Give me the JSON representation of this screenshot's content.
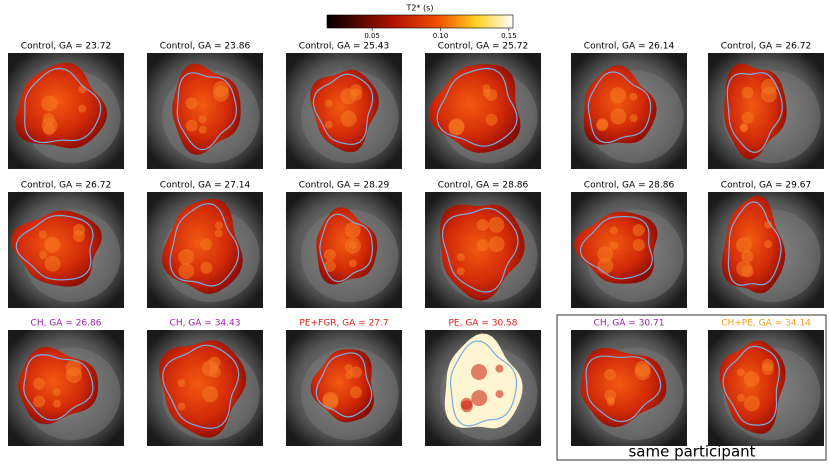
{
  "colorbar": {
    "label": "T2* (s)",
    "range": [
      0.017,
      0.153
    ],
    "ticks": [
      0.05,
      {
        "value": 0.1,
        "label": "0.10"
      },
      0.15
    ]
  },
  "panels": [
    {
      "title": "Control, GA = 23.72",
      "color": "#000000"
    },
    {
      "title": "Control, GA = 23.86",
      "color": "#000000"
    },
    {
      "title": "Control, GA = 25.43",
      "color": "#000000"
    },
    {
      "title": "Control, GA = 25.72",
      "color": "#000000"
    },
    {
      "title": "Control, GA = 26.14",
      "color": "#000000"
    },
    {
      "title": "Control, GA = 26.72",
      "color": "#000000"
    },
    {
      "title": "Control, GA = 26.72",
      "color": "#000000"
    },
    {
      "title": "Control, GA = 27.14",
      "color": "#000000"
    },
    {
      "title": "Control, GA = 28.29",
      "color": "#000000"
    },
    {
      "title": "Control, GA = 28.86",
      "color": "#000000"
    },
    {
      "title": "Control, GA = 28.86",
      "color": "#000000"
    },
    {
      "title": "Control, GA = 29.67",
      "color": "#000000"
    },
    {
      "title": "CH, GA = 26.86",
      "color": "#9b1fa6"
    },
    {
      "title": "CH, GA = 34.43",
      "color": "#9b1fa6"
    },
    {
      "title": "PE+FGR, GA = 27.7",
      "color": "#e0201c"
    },
    {
      "title": "PE, GA = 30.58",
      "color": "#e0201c"
    },
    {
      "title": "CH, GA = 30.71",
      "color": "#9b1fa6"
    },
    {
      "title": "CH+PE, GA = 34.14",
      "color": "#f0a020"
    }
  ],
  "note": "same participant"
}
